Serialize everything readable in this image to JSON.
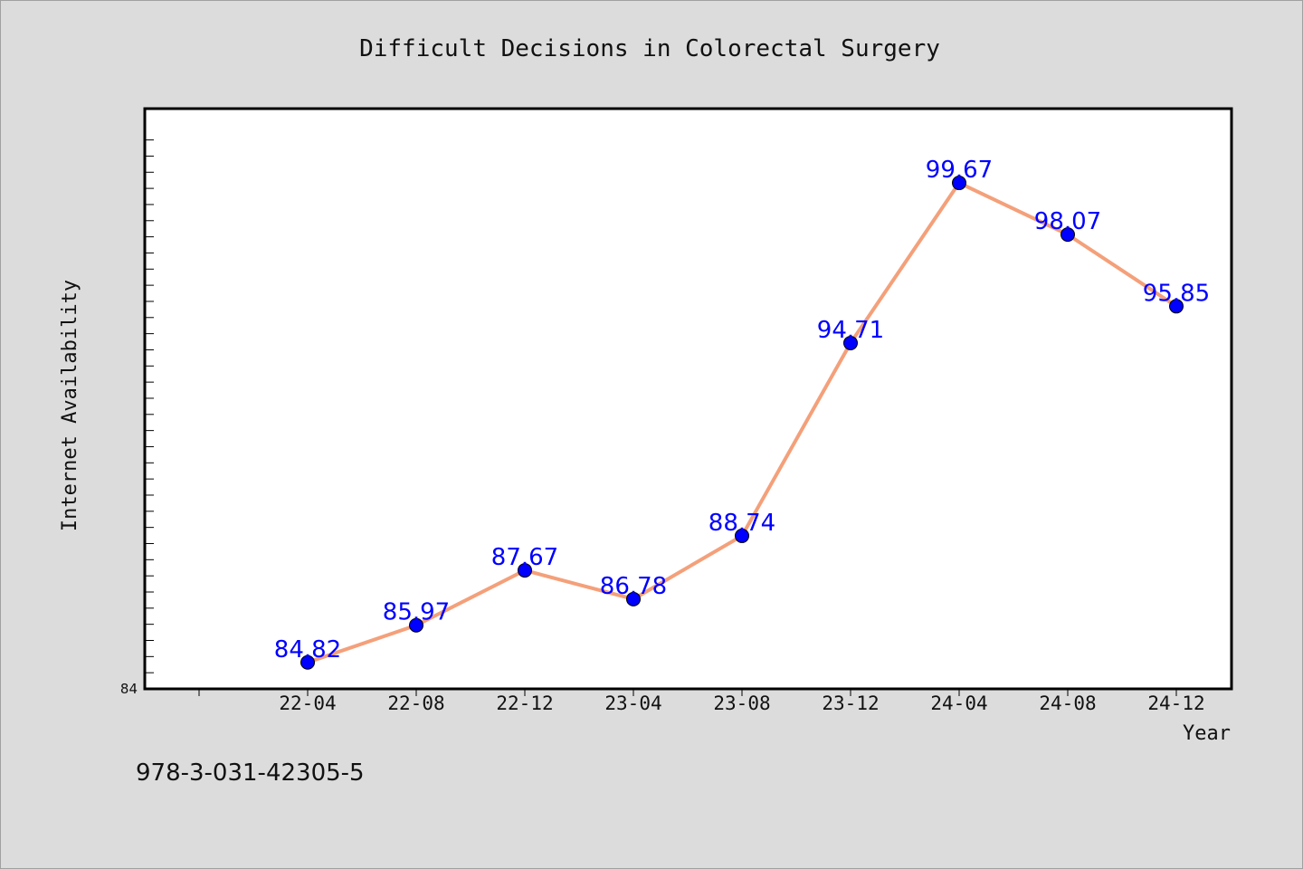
{
  "chart_data": {
    "type": "line",
    "title": "Difficult Decisions in Colorectal Surgery",
    "xlabel": "Year",
    "ylabel": "Internet Availability",
    "categories": [
      "22-04",
      "22-08",
      "22-12",
      "23-04",
      "23-08",
      "23-12",
      "24-04",
      "24-08",
      "24-12"
    ],
    "series": [
      {
        "values": [
          84.82,
          85.97,
          87.67,
          86.78,
          88.74,
          94.71,
          99.67,
          98.07,
          95.85
        ],
        "line_color": "#f4a07a",
        "marker_color": "#0000ff"
      }
    ],
    "data_labels": [
      "84.82",
      "85.97",
      "87.67",
      "86.78",
      "88.74",
      "94.71",
      "99.67",
      "98.07",
      "95.85"
    ],
    "y_tick_label": "84",
    "ylim": [
      84,
      101.97
    ],
    "grid": false,
    "legend": "none"
  },
  "footnote": "978-3-031-42305-5"
}
